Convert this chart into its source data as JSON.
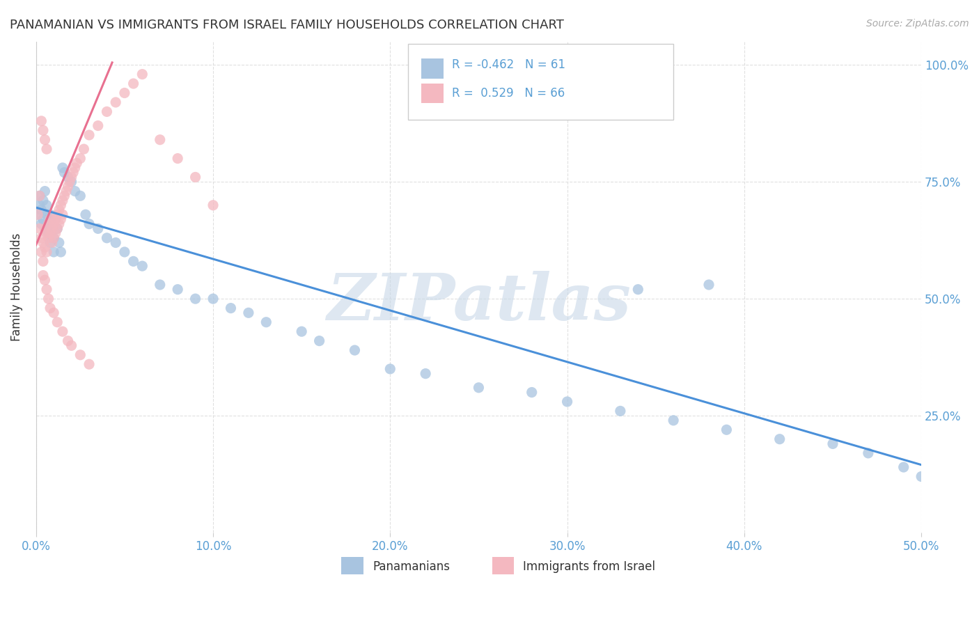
{
  "title": "PANAMANIAN VS IMMIGRANTS FROM ISRAEL FAMILY HOUSEHOLDS CORRELATION CHART",
  "source": "Source: ZipAtlas.com",
  "ylabel": "Family Households",
  "xlim": [
    0,
    0.5
  ],
  "ylim": [
    0,
    1.05
  ],
  "watermark": "ZIPatlas",
  "legend": {
    "blue_label": "Panamanians",
    "pink_label": "Immigrants from Israel",
    "blue_r": "-0.462",
    "blue_n": "61",
    "pink_r": "0.529",
    "pink_n": "66"
  },
  "blue_scatter_x": [
    0.001,
    0.002,
    0.002,
    0.003,
    0.003,
    0.004,
    0.004,
    0.005,
    0.005,
    0.006,
    0.006,
    0.007,
    0.007,
    0.008,
    0.008,
    0.009,
    0.01,
    0.01,
    0.011,
    0.012,
    0.013,
    0.014,
    0.015,
    0.016,
    0.018,
    0.02,
    0.022,
    0.025,
    0.028,
    0.03,
    0.035,
    0.04,
    0.045,
    0.05,
    0.055,
    0.06,
    0.07,
    0.08,
    0.09,
    0.1,
    0.11,
    0.12,
    0.13,
    0.15,
    0.16,
    0.18,
    0.2,
    0.22,
    0.25,
    0.28,
    0.3,
    0.33,
    0.36,
    0.39,
    0.42,
    0.45,
    0.47,
    0.49,
    0.5,
    0.38,
    0.34
  ],
  "blue_scatter_y": [
    0.68,
    0.7,
    0.72,
    0.66,
    0.69,
    0.71,
    0.67,
    0.73,
    0.65,
    0.68,
    0.7,
    0.64,
    0.66,
    0.68,
    0.62,
    0.65,
    0.63,
    0.6,
    0.67,
    0.65,
    0.62,
    0.6,
    0.78,
    0.77,
    0.76,
    0.75,
    0.73,
    0.72,
    0.68,
    0.66,
    0.65,
    0.63,
    0.62,
    0.6,
    0.58,
    0.57,
    0.53,
    0.52,
    0.5,
    0.5,
    0.48,
    0.47,
    0.45,
    0.43,
    0.41,
    0.39,
    0.35,
    0.34,
    0.31,
    0.3,
    0.28,
    0.26,
    0.24,
    0.22,
    0.2,
    0.19,
    0.17,
    0.14,
    0.12,
    0.53,
    0.52
  ],
  "pink_scatter_x": [
    0.001,
    0.002,
    0.002,
    0.003,
    0.003,
    0.004,
    0.004,
    0.005,
    0.005,
    0.006,
    0.006,
    0.007,
    0.007,
    0.008,
    0.008,
    0.009,
    0.009,
    0.01,
    0.01,
    0.011,
    0.011,
    0.012,
    0.012,
    0.013,
    0.013,
    0.014,
    0.014,
    0.015,
    0.015,
    0.016,
    0.017,
    0.018,
    0.019,
    0.02,
    0.021,
    0.022,
    0.023,
    0.025,
    0.027,
    0.03,
    0.035,
    0.04,
    0.045,
    0.05,
    0.055,
    0.06,
    0.07,
    0.08,
    0.09,
    0.1,
    0.004,
    0.005,
    0.006,
    0.007,
    0.008,
    0.01,
    0.012,
    0.015,
    0.018,
    0.02,
    0.025,
    0.03,
    0.003,
    0.004,
    0.005,
    0.006
  ],
  "pink_scatter_y": [
    0.68,
    0.72,
    0.65,
    0.63,
    0.6,
    0.62,
    0.58,
    0.65,
    0.61,
    0.64,
    0.6,
    0.66,
    0.63,
    0.67,
    0.64,
    0.65,
    0.62,
    0.66,
    0.63,
    0.67,
    0.64,
    0.68,
    0.65,
    0.69,
    0.66,
    0.7,
    0.67,
    0.71,
    0.68,
    0.72,
    0.73,
    0.74,
    0.75,
    0.76,
    0.77,
    0.78,
    0.79,
    0.8,
    0.82,
    0.85,
    0.87,
    0.9,
    0.92,
    0.94,
    0.96,
    0.98,
    0.84,
    0.8,
    0.76,
    0.7,
    0.55,
    0.54,
    0.52,
    0.5,
    0.48,
    0.47,
    0.45,
    0.43,
    0.41,
    0.4,
    0.38,
    0.36,
    0.88,
    0.86,
    0.84,
    0.82
  ],
  "blue_line_x": [
    0.0,
    0.5
  ],
  "blue_line_y": [
    0.695,
    0.145
  ],
  "pink_line_x": [
    0.0,
    0.043
  ],
  "pink_line_y": [
    0.615,
    1.005
  ],
  "blue_color": "#a8c4e0",
  "pink_color": "#f4b8c0",
  "blue_line_color": "#4a90d9",
  "pink_line_color": "#e87090",
  "title_color": "#333333",
  "axis_color": "#5a9fd4",
  "grid_color": "#dddddd",
  "background_color": "#ffffff",
  "watermark_color": "#c8d8e8"
}
